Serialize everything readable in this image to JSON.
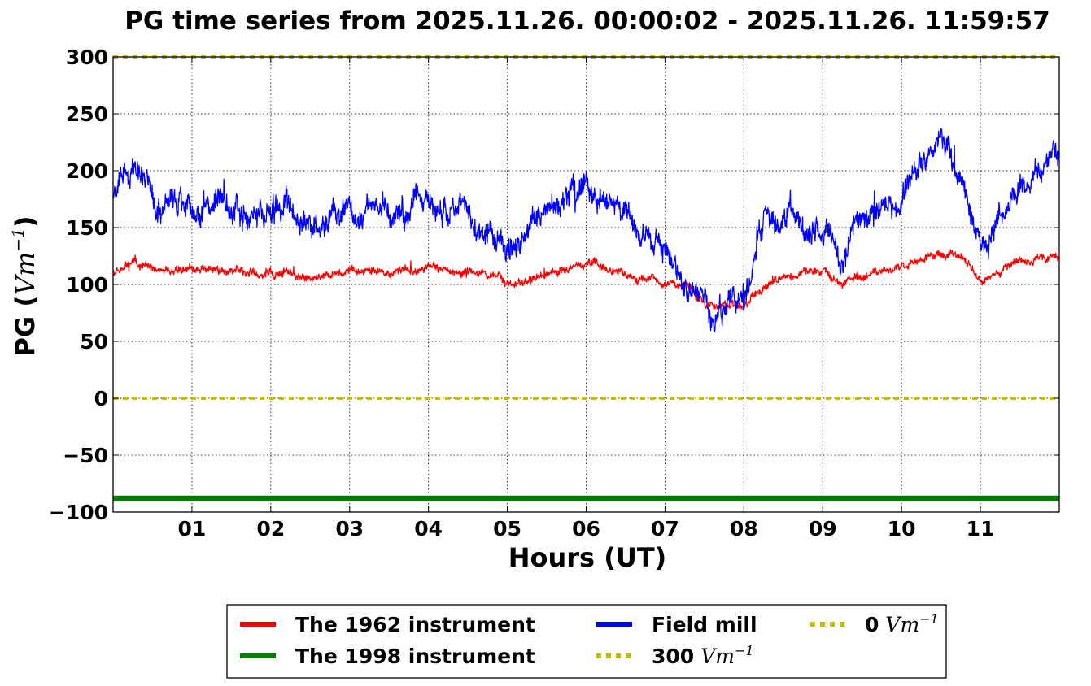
{
  "chart_data": {
    "type": "line",
    "title": "PG time series from 2025.11.26. 00:00:02 - 2025.11.26. 11:59:57",
    "xlabel": "Hours (UT)",
    "ylabel": "PG (Vm⁻¹)",
    "ylabel_main": "PG (",
    "ylabel_unit": "Vm",
    "ylabel_exp": "−1",
    "ylabel_close": ")",
    "xlim": [
      0,
      12
    ],
    "ylim": [
      -100,
      300
    ],
    "grid": true,
    "legend_position": "bottom-center",
    "x_ticks": [
      1,
      2,
      3,
      4,
      5,
      6,
      7,
      8,
      9,
      10,
      11
    ],
    "x_tick_labels": [
      "01",
      "02",
      "03",
      "04",
      "05",
      "06",
      "07",
      "08",
      "09",
      "10",
      "11"
    ],
    "y_ticks": [
      -100,
      -50,
      0,
      50,
      100,
      150,
      200,
      250,
      300
    ],
    "y_tick_labels": [
      "−100",
      "−50",
      "0",
      "50",
      "100",
      "150",
      "200",
      "250",
      "300"
    ],
    "series": [
      {
        "name": "The 1962 instrument",
        "color": "#ff0000",
        "style": "solid",
        "x": [
          0,
          0.25,
          0.5,
          1,
          1.5,
          2,
          2.5,
          3,
          3.5,
          4,
          4.5,
          4.75,
          5,
          5.25,
          5.5,
          6,
          6.25,
          6.5,
          7,
          7.25,
          7.5,
          7.75,
          8,
          8.25,
          8.5,
          9,
          9.25,
          9.5,
          10,
          10.25,
          10.5,
          10.75,
          11,
          11.25,
          11.5,
          12
        ],
        "values": [
          112,
          122,
          113,
          113,
          112,
          109,
          107,
          111,
          110,
          114,
          111,
          108,
          102,
          103,
          110,
          118,
          117,
          108,
          104,
          98,
          84,
          82,
          82,
          100,
          108,
          110,
          102,
          106,
          115,
          122,
          130,
          125,
          105,
          110,
          122,
          125
        ]
      },
      {
        "name": "The 1998 instrument",
        "color": "#008000",
        "style": "solid",
        "x": [
          0,
          12
        ],
        "values": [
          -88,
          -88
        ]
      },
      {
        "name": "Field mill",
        "color": "#0000ff",
        "style": "solid",
        "x": [
          0,
          0.25,
          0.5,
          1,
          1.5,
          2,
          2.5,
          3,
          3.5,
          4,
          4.5,
          4.75,
          5,
          5.25,
          5.5,
          6,
          6.25,
          6.5,
          7,
          7.25,
          7.5,
          7.75,
          8,
          8.25,
          8.5,
          9,
          9.25,
          9.5,
          10,
          10.25,
          10.5,
          10.75,
          11,
          11.25,
          11.5,
          12
        ],
        "values": [
          178,
          200,
          175,
          170,
          170,
          165,
          150,
          163,
          160,
          170,
          163,
          150,
          135,
          145,
          165,
          185,
          178,
          160,
          140,
          100,
          75,
          80,
          80,
          150,
          160,
          150,
          125,
          160,
          180,
          205,
          225,
          190,
          140,
          150,
          195,
          210
        ]
      },
      {
        "name": "300 Vm⁻¹",
        "label_main": "300",
        "label_unit": "Vm",
        "label_exp": "−1",
        "color": "#bfbf00",
        "style": "dotted",
        "x": [
          0,
          12
        ],
        "values": [
          300,
          300
        ]
      },
      {
        "name": "0 Vm⁻¹",
        "label_main": "0",
        "label_unit": "Vm",
        "label_exp": "−1",
        "color": "#bfbf00",
        "style": "dotted",
        "x": [
          0,
          12
        ],
        "values": [
          0,
          0
        ]
      }
    ],
    "legend": [
      {
        "label": "The 1962 instrument",
        "color": "#ff0000",
        "style": "solid"
      },
      {
        "label": "Field mill",
        "color": "#0000ff",
        "style": "solid"
      },
      {
        "label_main": "0",
        "label_unit": "Vm",
        "label_exp": "−1",
        "color": "#bfbf00",
        "style": "dotted"
      },
      {
        "label": "The 1998 instrument",
        "color": "#008000",
        "style": "solid"
      },
      {
        "label_main": "300",
        "label_unit": "Vm",
        "label_exp": "−1",
        "color": "#bfbf00",
        "style": "dotted"
      }
    ]
  }
}
